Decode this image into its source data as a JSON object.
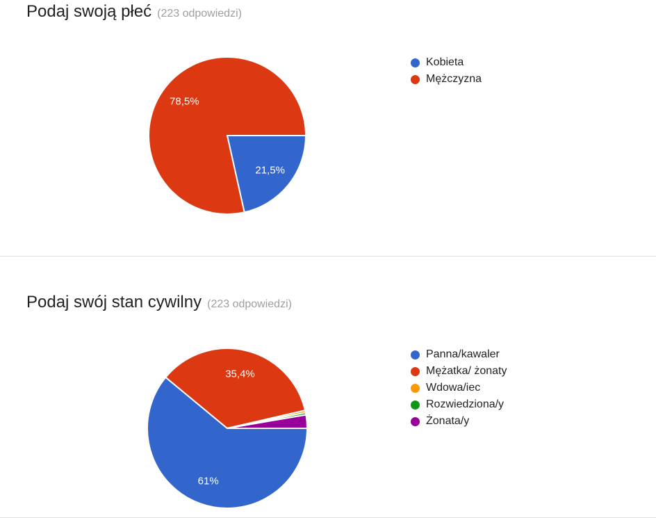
{
  "page": {
    "background": "#ffffff",
    "divider_color": "#e0e0e0",
    "title_color": "#212121",
    "muted_text_color": "#9e9e9e"
  },
  "chart_data": [
    {
      "type": "pie",
      "title": "Podaj swoją płeć",
      "responses_note": "(223 odpowiedzi)",
      "total_responses": 223,
      "legend_position": "right",
      "start_angle_deg": 0,
      "direction": "clockwise",
      "percent_label_color": "#ffffff",
      "slices": [
        {
          "label": "Kobieta",
          "value_pct": 21.5,
          "display": "21,5%",
          "color": "#3366cc"
        },
        {
          "label": "Mężczyzna",
          "value_pct": 78.5,
          "display": "78,5%",
          "color": "#dc3912"
        }
      ]
    },
    {
      "type": "pie",
      "title": "Podaj swój stan cywilny",
      "responses_note": "(223 odpowiedzi)",
      "total_responses": 223,
      "legend_position": "right",
      "start_angle_deg": 0,
      "direction": "clockwise",
      "percent_label_color": "#ffffff",
      "slices": [
        {
          "label": "Panna/kawaler",
          "value_pct": 61,
          "display": "61%",
          "color": "#3366cc"
        },
        {
          "label": "Mężatka/ żonaty",
          "value_pct": 35.4,
          "display": "35,4%",
          "color": "#dc3912"
        },
        {
          "label": "Wdowa/iec",
          "value_pct": 0.45,
          "display": "",
          "color": "#ff9900"
        },
        {
          "label": "Rozwiedziona/y",
          "value_pct": 0.45,
          "display": "",
          "color": "#109618"
        },
        {
          "label": "Żonata/y",
          "value_pct": 2.7,
          "display": "",
          "color": "#990099"
        }
      ]
    }
  ]
}
